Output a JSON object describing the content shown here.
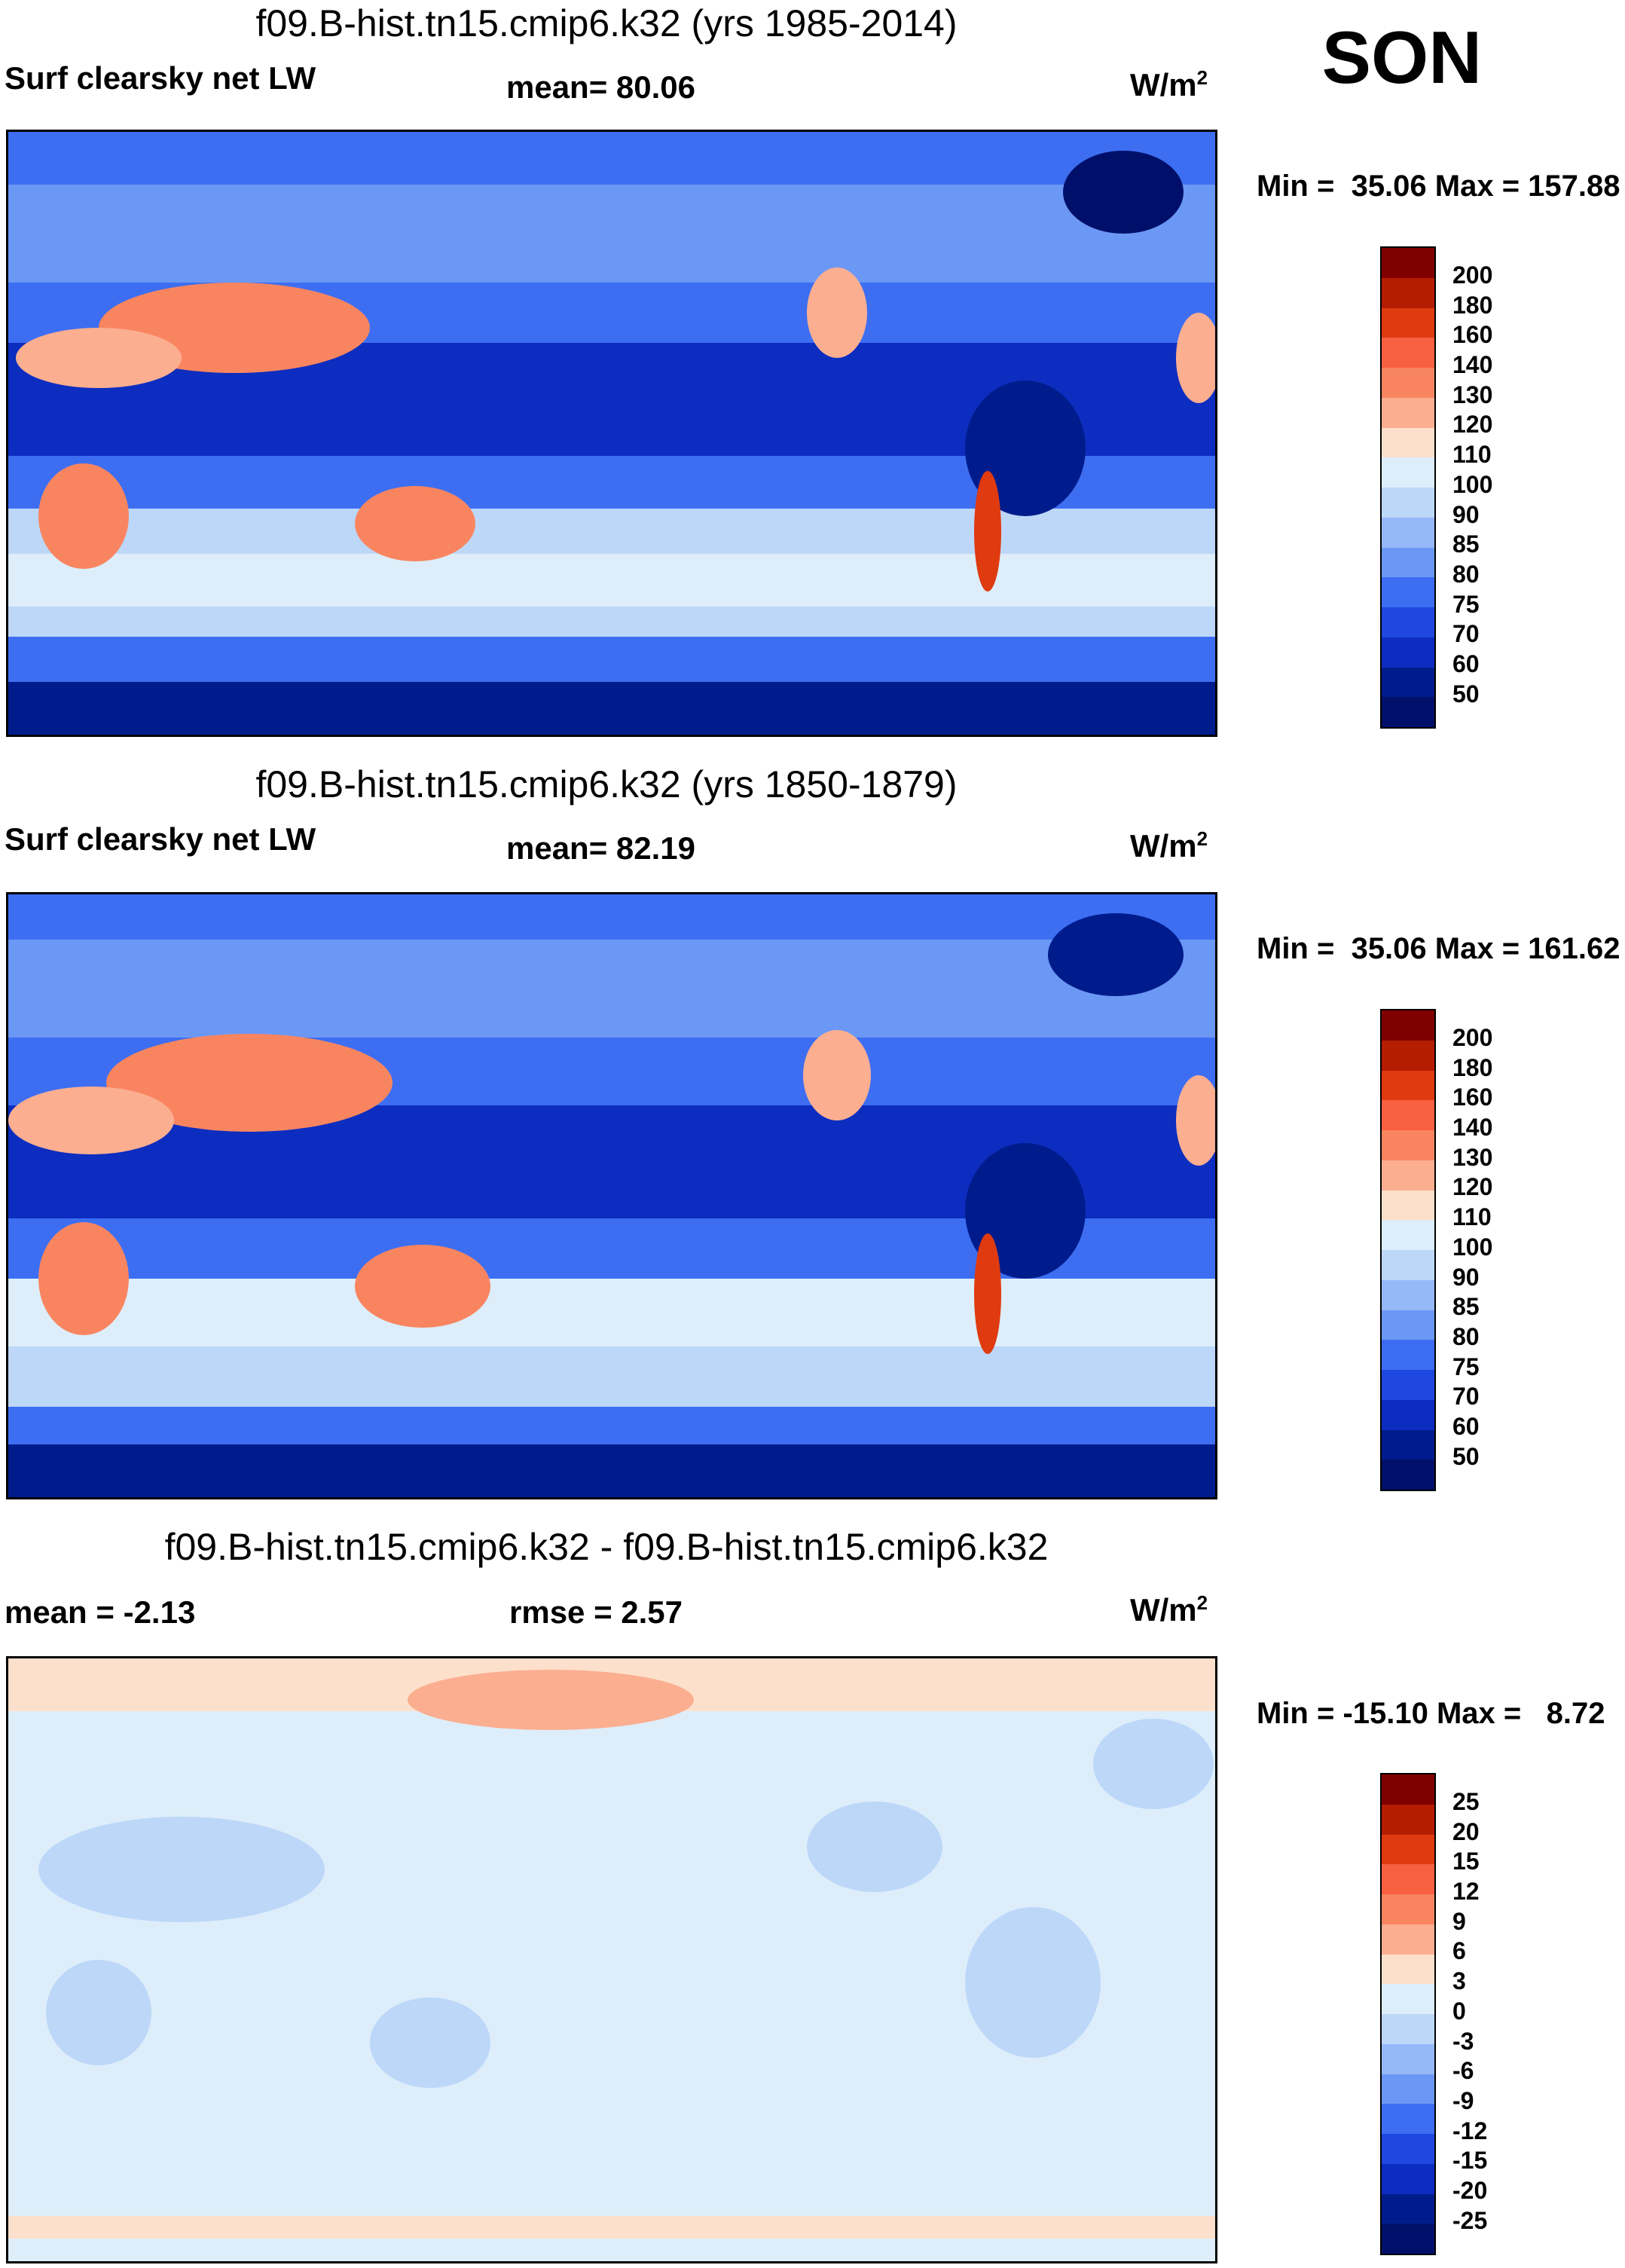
{
  "season": "SON",
  "panels": [
    {
      "title": "f09.B-hist.tn15.cmip6.k32 (yrs 1985-2014)",
      "left_label": "Surf clearsky net LW",
      "center_label": "mean=  80.06",
      "units": "W/m",
      "units_sup": "2",
      "minmax": "Min =  35.06 Max = 157.88",
      "colorbar_labels": [
        "200",
        "180",
        "160",
        "140",
        "130",
        "120",
        "110",
        "100",
        "90",
        "85",
        "80",
        "75",
        "70",
        "60",
        "50"
      ],
      "colorbar_colors": [
        "#800000",
        "#b51d00",
        "#e03a10",
        "#f76040",
        "#f98560",
        "#fbae90",
        "#fde0cc",
        "#ddeefa",
        "#bdd7f9",
        "#94b8f8",
        "#6c98f5",
        "#3d6ef2",
        "#1e48e0",
        "#0c2dbf",
        "#001c8c",
        "#00106a"
      ]
    },
    {
      "title": "f09.B-hist.tn15.cmip6.k32 (yrs 1850-1879)",
      "left_label": "Surf clearsky net LW",
      "center_label": "mean=  82.19",
      "units": "W/m",
      "units_sup": "2",
      "minmax": "Min =  35.06 Max = 161.62",
      "colorbar_labels": [
        "200",
        "180",
        "160",
        "140",
        "130",
        "120",
        "110",
        "100",
        "90",
        "85",
        "80",
        "75",
        "70",
        "60",
        "50"
      ],
      "colorbar_colors": [
        "#800000",
        "#b51d00",
        "#e03a10",
        "#f76040",
        "#f98560",
        "#fbae90",
        "#fde0cc",
        "#ddeefa",
        "#bdd7f9",
        "#94b8f8",
        "#6c98f5",
        "#3d6ef2",
        "#1e48e0",
        "#0c2dbf",
        "#001c8c",
        "#00106a"
      ]
    },
    {
      "title": "f09.B-hist.tn15.cmip6.k32 - f09.B-hist.tn15.cmip6.k32",
      "left_label": "mean =  -2.13",
      "center_label": "rmse =   2.57",
      "units": "W/m",
      "units_sup": "2",
      "minmax": "Min = -15.10 Max =   8.72",
      "colorbar_labels": [
        "25",
        "20",
        "15",
        "12",
        "9",
        "6",
        "3",
        "0",
        "-3",
        "-6",
        "-9",
        "-12",
        "-15",
        "-20",
        "-25"
      ],
      "colorbar_colors": [
        "#800000",
        "#b51d00",
        "#e03a10",
        "#f76040",
        "#f98560",
        "#fbae90",
        "#fde0cc",
        "#ddeefa",
        "#bdd7f9",
        "#94b8f8",
        "#6c98f5",
        "#3d6ef2",
        "#1e48e0",
        "#0c2dbf",
        "#001c8c",
        "#00106a"
      ]
    }
  ]
}
